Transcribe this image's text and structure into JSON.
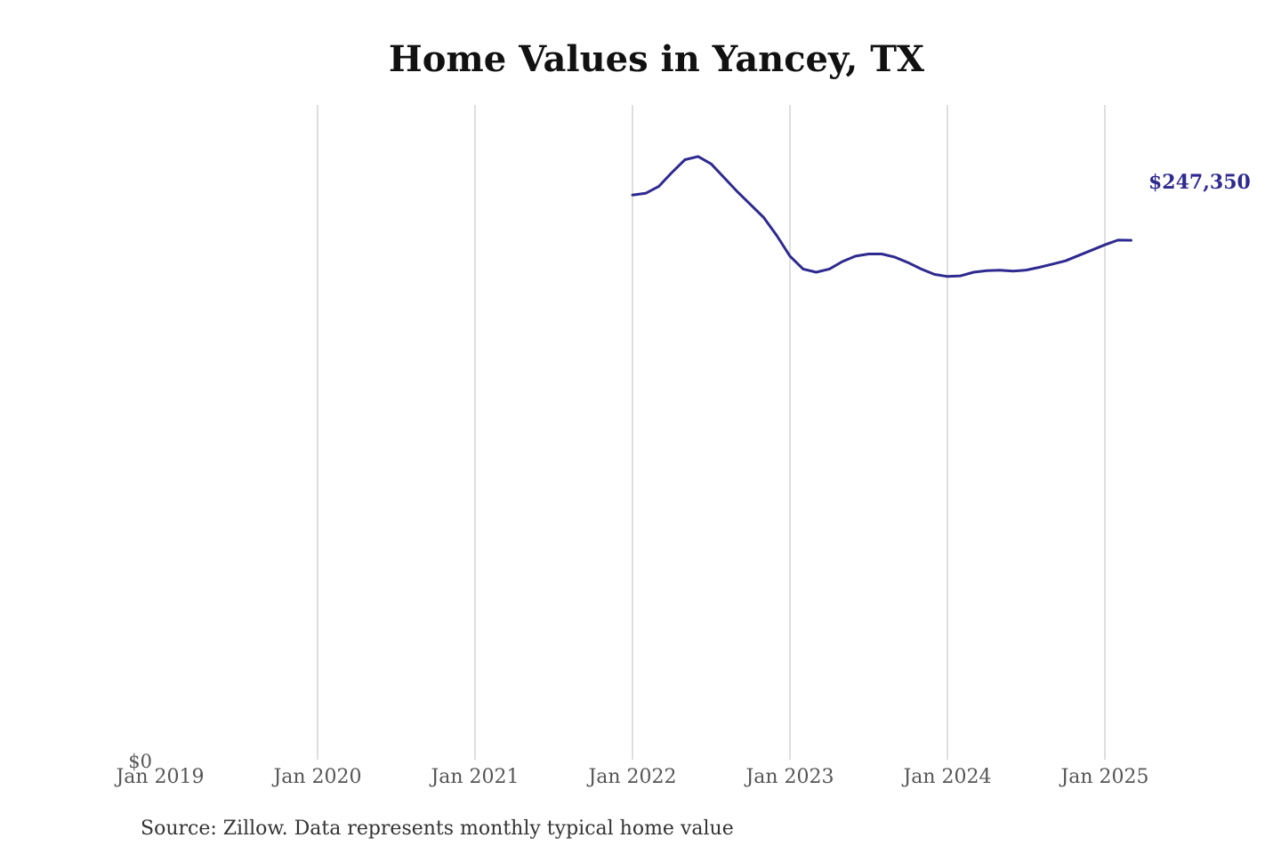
{
  "chart_data": {
    "type": "line",
    "title": "Home Values in Yancey, TX",
    "xlabel": "",
    "ylabel": "",
    "x_ticks": [
      "Jan 2019",
      "Jan 2020",
      "Jan 2021",
      "Jan 2022",
      "Jan 2023",
      "Jan 2024",
      "Jan 2025"
    ],
    "y_ticks": [
      {
        "value": 0,
        "label": "$0"
      }
    ],
    "xlim": [
      "2019-01",
      "2025-09"
    ],
    "ylim": [
      0,
      307000
    ],
    "grid": "vertical",
    "legend": "none",
    "line_color": "#2e2a8f",
    "series": [
      {
        "values": [
          {
            "x": "2022-01",
            "y": 265000
          },
          {
            "x": "2022-02",
            "y": 265800
          },
          {
            "x": "2022-03",
            "y": 269000
          },
          {
            "x": "2022-04",
            "y": 275500
          },
          {
            "x": "2022-05",
            "y": 281500
          },
          {
            "x": "2022-06",
            "y": 283000
          },
          {
            "x": "2022-07",
            "y": 279500
          },
          {
            "x": "2022-08",
            "y": 273000
          },
          {
            "x": "2022-09",
            "y": 266500
          },
          {
            "x": "2022-10",
            "y": 260500
          },
          {
            "x": "2022-11",
            "y": 254500
          },
          {
            "x": "2022-12",
            "y": 246000
          },
          {
            "x": "2023-01",
            "y": 236500
          },
          {
            "x": "2023-02",
            "y": 230500
          },
          {
            "x": "2023-03",
            "y": 229000
          },
          {
            "x": "2023-04",
            "y": 230500
          },
          {
            "x": "2023-05",
            "y": 234000
          },
          {
            "x": "2023-06",
            "y": 236500
          },
          {
            "x": "2023-07",
            "y": 237500
          },
          {
            "x": "2023-08",
            "y": 237500
          },
          {
            "x": "2023-09",
            "y": 236000
          },
          {
            "x": "2023-10",
            "y": 233500
          },
          {
            "x": "2023-11",
            "y": 230500
          },
          {
            "x": "2023-12",
            "y": 228000
          },
          {
            "x": "2024-01",
            "y": 227000
          },
          {
            "x": "2024-02",
            "y": 227300
          },
          {
            "x": "2024-03",
            "y": 229000
          },
          {
            "x": "2024-04",
            "y": 229700
          },
          {
            "x": "2024-05",
            "y": 229900
          },
          {
            "x": "2024-06",
            "y": 229500
          },
          {
            "x": "2024-07",
            "y": 230000
          },
          {
            "x": "2024-08",
            "y": 231300
          },
          {
            "x": "2024-09",
            "y": 232800
          },
          {
            "x": "2024-10",
            "y": 234300
          },
          {
            "x": "2024-11",
            "y": 236800
          },
          {
            "x": "2024-12",
            "y": 239300
          },
          {
            "x": "2025-01",
            "y": 241800
          },
          {
            "x": "2025-02",
            "y": 244000
          },
          {
            "x": "2025-03",
            "y": 243900
          }
        ]
      }
    ],
    "end_label": "$247,350"
  },
  "source_note": "Source: Zillow. Data represents monthly typical home value"
}
